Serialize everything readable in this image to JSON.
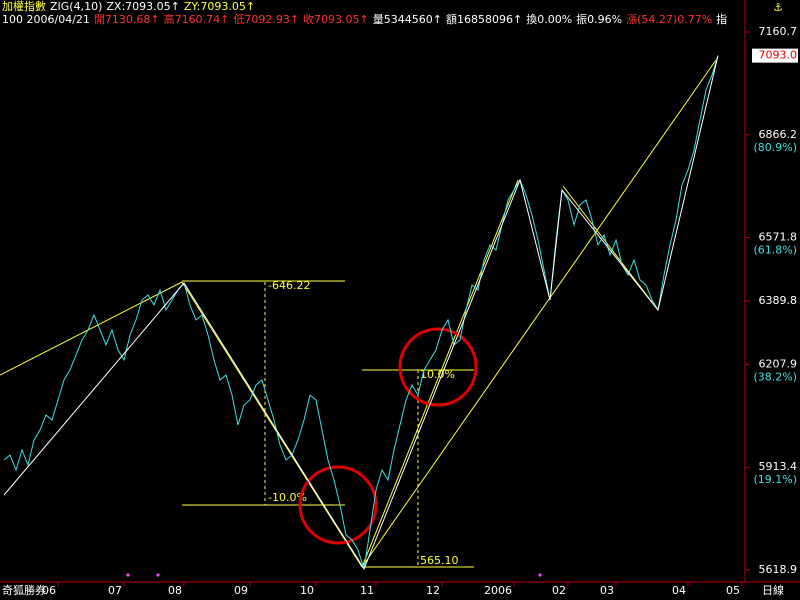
{
  "header": {
    "title": "加權指數",
    "indicator": "ZIG(4,10)",
    "zx": "ZX:7093.05↑",
    "zy": "ZY:7093.05↑",
    "quote": [
      {
        "text": "100 2006/04/21",
        "color": "#ffffff"
      },
      {
        "text": "開7130.68↑",
        "color": "#ff3030"
      },
      {
        "text": "高7160.74↑",
        "color": "#ff3030"
      },
      {
        "text": "低7092.93↑",
        "color": "#ff3030"
      },
      {
        "text": "收7093.05↑",
        "color": "#ff3030"
      },
      {
        "text": "量5344560↑",
        "color": "#ffffff"
      },
      {
        "text": "額16858096↑",
        "color": "#ffffff"
      },
      {
        "text": "換0.00%",
        "color": "#ffffff"
      },
      {
        "text": "振0.96%",
        "color": "#ffffff"
      },
      {
        "text": "漲(54.27)0.77%",
        "color": "#ff3030"
      },
      {
        "text": "指",
        "color": "#ffffff"
      }
    ]
  },
  "chart_data": {
    "type": "line",
    "categories": [
      null,
      null,
      null,
      null,
      null,
      null,
      null,
      null,
      null,
      "06",
      null,
      null,
      null,
      null,
      null,
      null,
      null,
      null,
      null,
      null,
      "07",
      null,
      null,
      null,
      null,
      null,
      null,
      null,
      null,
      null,
      "08",
      null,
      null,
      null,
      null,
      null,
      null,
      null,
      null,
      null,
      null,
      "09",
      null,
      null,
      null,
      null,
      null,
      null,
      null,
      null,
      null,
      null,
      "10",
      null,
      null,
      null,
      null,
      null,
      null,
      null,
      null,
      null,
      "11",
      null,
      null,
      null,
      null,
      null,
      null,
      null,
      null,
      null,
      null,
      "12",
      null,
      null,
      null,
      null,
      null,
      null,
      null,
      null,
      null,
      null,
      null,
      "2006",
      null,
      null,
      null,
      null,
      null,
      null,
      null,
      null,
      "02",
      null,
      null,
      null,
      null,
      null,
      null,
      null,
      "03",
      null,
      null,
      null,
      null,
      null,
      null,
      null,
      null,
      null,
      null,
      null,
      "04",
      null,
      null,
      null,
      null,
      null,
      null,
      null,
      null,
      "05"
    ],
    "series": [
      {
        "name": "加權指數",
        "color": "#40e0e0",
        "values": [
          5934.2,
          5948.5,
          5905.5,
          5962.8,
          5919.8,
          5991.5,
          6020.1,
          6063.1,
          6048.8,
          6106.1,
          6163.4,
          6192.1,
          6235.1,
          6278.1,
          6306.7,
          6349.7,
          6306.7,
          6263.8,
          6306.7,
          6249.4,
          6220.8,
          6292.4,
          6335.4,
          6392.7,
          6407.1,
          6378.4,
          6421.4,
          6364.1,
          6392.7,
          6421.4,
          6441.4,
          6378.4,
          6335.4,
          6349.7,
          6292.4,
          6220.8,
          6163.4,
          6177.8,
          6120.5,
          6034.5,
          6091.8,
          6106.1,
          6149.1,
          6163.4,
          6106.1,
          6048.8,
          5977.2,
          5934.2,
          5948.5,
          5991.5,
          6048.8,
          6120.5,
          6106.1,
          6020.1,
          5934.2,
          5876.8,
          5805.2,
          5719.2,
          5704.9,
          5676.2,
          5622.0,
          5733.5,
          5848.2,
          5905.5,
          5876.8,
          5962.8,
          6034.5,
          6106.1,
          6149.1,
          6120.5,
          6192.1,
          6220.8,
          6249.4,
          6306.7,
          6335.4,
          6263.8,
          6278.1,
          6364.1,
          6435.7,
          6421.4,
          6507.4,
          6550.4,
          6536.0,
          6607.7,
          6679.3,
          6708.0,
          6736.6,
          6693.7,
          6636.3,
          6564.7,
          6478.7,
          6392.7,
          6564.7,
          6708.0,
          6679.3,
          6607.7,
          6665.0,
          6679.3,
          6622.0,
          6550.4,
          6579.0,
          6521.7,
          6564.7,
          6493.0,
          6464.4,
          6507.4,
          6450.0,
          6435.7,
          6392.7,
          6364.1,
          6464.4,
          6550.4,
          6622.0,
          6722.3,
          6765.3,
          6822.6,
          6908.6,
          6994.6,
          7037.6,
          7093.05,
          null,
          null,
          null,
          null
        ]
      }
    ],
    "zigzag": {
      "color": "#ffffff",
      "x": [
        0,
        30,
        60,
        86,
        91,
        93,
        109,
        119
      ],
      "values": [
        5833.8,
        6441.4,
        5622.0,
        6736.6,
        6392.7,
        6708.0,
        6364.1,
        7093.05
      ]
    },
    "ylim": [
      5584.5,
      7195.1
    ],
    "yticks": [
      7160.7,
      6866.2,
      6571.8,
      6389.8,
      6207.9,
      5913.4,
      5618.9
    ],
    "fib_levels": [
      {
        "value": 6866.2,
        "label": "(80.9%)"
      },
      {
        "value": 6571.8,
        "label": "(61.8%)"
      },
      {
        "value": 6207.9,
        "label": "(38.2%)"
      },
      {
        "value": 5913.4,
        "label": "(19.1%)"
      }
    ],
    "current": {
      "value": 7093.0,
      "label": "7093.0"
    },
    "annotations": [
      "-646.22",
      "-10.0%",
      "10.0%",
      "565.10"
    ],
    "footer_left": "奇狐勝券",
    "period": "日線"
  }
}
